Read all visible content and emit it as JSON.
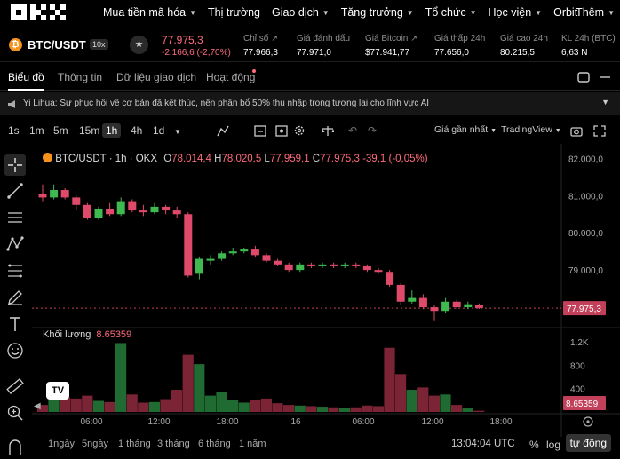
{
  "nav": {
    "logo_text": "OKX",
    "items": [
      {
        "label": "Mua tiền mã hóa",
        "dropdown": true
      },
      {
        "label": "Thị trường",
        "dropdown": false
      },
      {
        "label": "Giao dịch",
        "dropdown": true
      },
      {
        "label": "Tăng trưởng",
        "dropdown": true
      },
      {
        "label": "Tổ chức",
        "dropdown": true
      },
      {
        "label": "Học viện",
        "dropdown": true
      },
      {
        "label": "Orbit",
        "dropdown": false
      }
    ],
    "more_label": "Thêm"
  },
  "ticker": {
    "coin_symbol": "₿",
    "pair": "BTC/USDT",
    "leverage": "10x",
    "last_price": "77.975,3",
    "change": "-2.166,6 (-2,70%)",
    "stats": [
      {
        "label": "Chỉ số",
        "value": "77.966,3",
        "ext": true
      },
      {
        "label": "Giá đánh dấu",
        "value": "77.971,0",
        "ext": false
      },
      {
        "label": "Giá Bitcoin",
        "value": "$77.941,77",
        "ext": true
      },
      {
        "label": "Giá thấp 24h",
        "value": "77.656,0",
        "ext": false
      },
      {
        "label": "Giá cao 24h",
        "value": "80.215,5",
        "ext": false
      },
      {
        "label": "KL 24h (BTC)",
        "value": "6,63 N",
        "ext": false
      }
    ],
    "colors": {
      "down": "#ff6b7d",
      "up": "#3fb950",
      "brand": "#f7931a"
    }
  },
  "tabs": [
    {
      "label": "Biểu đồ",
      "active": true
    },
    {
      "label": "Thông tin",
      "active": false
    },
    {
      "label": "Dữ liệu giao dịch",
      "active": false
    },
    {
      "label": "Hoạt động",
      "active": false,
      "dot": true
    }
  ],
  "announcement": "Yi Lihua: Sự phục hồi về cơ bản đã kết thúc, nên phân bổ 50% thu nhập trong tương lai cho lĩnh vực AI",
  "toolbar": {
    "intervals": [
      "1s",
      "1m",
      "5m",
      "15m",
      "1h",
      "4h",
      "1d"
    ],
    "selected_interval": "1h",
    "price_type": "Giá gần nhất",
    "view_mode": "TradingView"
  },
  "chart_header": {
    "title": "BTC/USDT · 1h · OKX",
    "o_label": "O",
    "o_value": "78.014,4",
    "h_label": "H",
    "h_value": "78.020,5",
    "l_label": "L",
    "l_value": "77.959,1",
    "c_label": "C",
    "c_value": "77.975,3",
    "change": "-39,1 (-0,05%)"
  },
  "volume_header": {
    "label": "Khối lượng",
    "value": "8.65359"
  },
  "chart_data": {
    "type": "candlestick",
    "price_axis": [
      "82.000,0",
      "81.000,0",
      "80.000,0",
      "79.000,0"
    ],
    "price_ylim": [
      77500,
      82200
    ],
    "current_price_label": "77.975,3",
    "volume_axis": [
      "1.2K",
      "800",
      "400"
    ],
    "volume_ylim": [
      0,
      1400
    ],
    "current_volume_label": "8.65359",
    "x_ticks": [
      "06:00",
      "12:00",
      "18:00",
      "16",
      "06:00",
      "12:00",
      "18:00"
    ],
    "candles": [
      {
        "o": 81.05,
        "c": 80.95,
        "h": 81.3,
        "l": 80.85,
        "v": 120
      },
      {
        "o": 80.95,
        "c": 81.15,
        "h": 81.3,
        "l": 80.9,
        "v": 200
      },
      {
        "o": 81.15,
        "c": 80.95,
        "h": 81.2,
        "l": 80.9,
        "v": 250
      },
      {
        "o": 80.95,
        "c": 80.75,
        "h": 81.0,
        "l": 80.6,
        "v": 230
      },
      {
        "o": 80.75,
        "c": 80.4,
        "h": 80.8,
        "l": 80.35,
        "v": 280
      },
      {
        "o": 80.4,
        "c": 80.65,
        "h": 80.7,
        "l": 80.35,
        "v": 190
      },
      {
        "o": 80.65,
        "c": 80.5,
        "h": 80.8,
        "l": 80.45,
        "v": 170
      },
      {
        "o": 80.5,
        "c": 80.85,
        "h": 80.95,
        "l": 80.45,
        "v": 1180
      },
      {
        "o": 80.85,
        "c": 80.6,
        "h": 80.9,
        "l": 80.55,
        "v": 300
      },
      {
        "o": 80.6,
        "c": 80.55,
        "h": 80.75,
        "l": 80.45,
        "v": 160
      },
      {
        "o": 80.55,
        "c": 80.7,
        "h": 80.8,
        "l": 80.5,
        "v": 170
      },
      {
        "o": 80.7,
        "c": 80.6,
        "h": 80.75,
        "l": 80.5,
        "v": 220
      },
      {
        "o": 80.6,
        "c": 80.5,
        "h": 80.7,
        "l": 80.4,
        "v": 380
      },
      {
        "o": 80.5,
        "c": 78.85,
        "h": 80.55,
        "l": 78.8,
        "v": 980
      },
      {
        "o": 78.9,
        "c": 79.3,
        "h": 79.35,
        "l": 78.75,
        "v": 820
      },
      {
        "o": 79.25,
        "c": 79.3,
        "h": 79.4,
        "l": 79.15,
        "v": 280
      },
      {
        "o": 79.3,
        "c": 79.45,
        "h": 79.5,
        "l": 79.25,
        "v": 350
      },
      {
        "o": 79.45,
        "c": 79.5,
        "h": 79.6,
        "l": 79.4,
        "v": 200
      },
      {
        "o": 79.5,
        "c": 79.55,
        "h": 79.6,
        "l": 79.45,
        "v": 160
      },
      {
        "o": 79.55,
        "c": 79.4,
        "h": 79.65,
        "l": 79.35,
        "v": 200
      },
      {
        "o": 79.4,
        "c": 79.25,
        "h": 79.45,
        "l": 79.2,
        "v": 230
      },
      {
        "o": 79.25,
        "c": 79.15,
        "h": 79.3,
        "l": 79.1,
        "v": 150
      },
      {
        "o": 79.15,
        "c": 79.0,
        "h": 79.2,
        "l": 78.95,
        "v": 120
      },
      {
        "o": 79.0,
        "c": 79.15,
        "h": 79.2,
        "l": 78.95,
        "v": 110
      },
      {
        "o": 79.15,
        "c": 79.1,
        "h": 79.2,
        "l": 79.05,
        "v": 100
      },
      {
        "o": 79.1,
        "c": 79.15,
        "h": 79.2,
        "l": 79.05,
        "v": 90
      },
      {
        "o": 79.15,
        "c": 79.1,
        "h": 79.2,
        "l": 79.05,
        "v": 80
      },
      {
        "o": 79.1,
        "c": 79.15,
        "h": 79.2,
        "l": 79.05,
        "v": 70
      },
      {
        "o": 79.15,
        "c": 79.1,
        "h": 79.2,
        "l": 79.05,
        "v": 80
      },
      {
        "o": 79.1,
        "c": 79.0,
        "h": 79.15,
        "l": 78.95,
        "v": 110
      },
      {
        "o": 79.0,
        "c": 78.95,
        "h": 79.05,
        "l": 78.9,
        "v": 100
      },
      {
        "o": 78.95,
        "c": 78.6,
        "h": 79.0,
        "l": 78.55,
        "v": 1100
      },
      {
        "o": 78.6,
        "c": 78.15,
        "h": 78.65,
        "l": 78.05,
        "v": 650
      },
      {
        "o": 78.15,
        "c": 78.25,
        "h": 78.45,
        "l": 78.1,
        "v": 380
      },
      {
        "o": 78.25,
        "c": 78.0,
        "h": 78.35,
        "l": 77.95,
        "v": 420
      },
      {
        "o": 78.0,
        "c": 77.9,
        "h": 78.05,
        "l": 77.65,
        "v": 280
      },
      {
        "o": 77.9,
        "c": 78.15,
        "h": 78.25,
        "l": 77.85,
        "v": 300
      },
      {
        "o": 78.15,
        "c": 78.0,
        "h": 78.2,
        "l": 77.95,
        "v": 120
      },
      {
        "o": 78.0,
        "c": 78.08,
        "h": 78.15,
        "l": 77.95,
        "v": 60
      },
      {
        "o": 78.05,
        "c": 77.98,
        "h": 78.1,
        "l": 77.95,
        "v": 20
      }
    ]
  },
  "bottom": {
    "ranges": [
      "1ngày",
      "5ngày",
      "1 tháng",
      "3 tháng",
      "6 tháng",
      "1 năm"
    ],
    "time": "13:04:04 UTC",
    "percent": "%",
    "log": "log",
    "auto": "tự động"
  }
}
